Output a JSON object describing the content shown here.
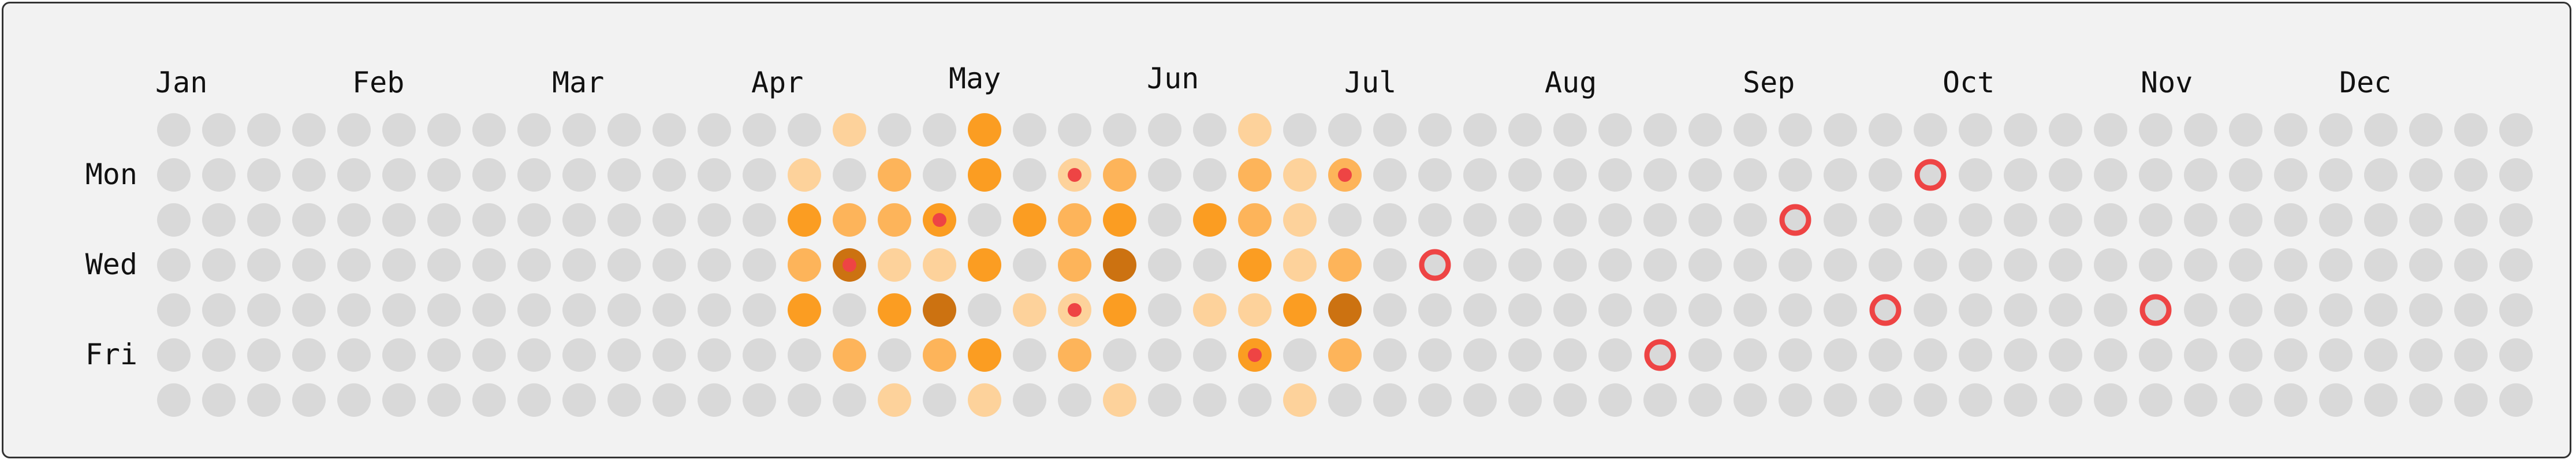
{
  "chart_data": {
    "type": "heatmap",
    "title": "",
    "months": [
      "Jan",
      "Feb",
      "Mar",
      "Apr",
      "May",
      "Jun",
      "Jul",
      "Aug",
      "Sep",
      "Oct",
      "Nov",
      "Dec"
    ],
    "day_labels": [
      "Mon",
      "Wed",
      "Fri"
    ],
    "weeks": 53,
    "days_per_week": 7,
    "level_colors": [
      "#d9d9d9",
      "#fdd29b",
      "#fdb45a",
      "#fb9d22",
      "#cc7211"
    ],
    "marker_color": "#ee4444",
    "active_cells": [
      {
        "week": 15,
        "day": 0,
        "level": 1
      },
      {
        "week": 18,
        "day": 0,
        "level": 3
      },
      {
        "week": 24,
        "day": 0,
        "level": 1
      },
      {
        "week": 14,
        "day": 1,
        "level": 1
      },
      {
        "week": 16,
        "day": 1,
        "level": 2
      },
      {
        "week": 18,
        "day": 1,
        "level": 3
      },
      {
        "week": 20,
        "day": 1,
        "level": 1,
        "dot": true
      },
      {
        "week": 21,
        "day": 1,
        "level": 2
      },
      {
        "week": 24,
        "day": 1,
        "level": 2
      },
      {
        "week": 25,
        "day": 1,
        "level": 1
      },
      {
        "week": 26,
        "day": 1,
        "level": 2,
        "dot": true
      },
      {
        "week": 14,
        "day": 2,
        "level": 3
      },
      {
        "week": 15,
        "day": 2,
        "level": 2
      },
      {
        "week": 16,
        "day": 2,
        "level": 2
      },
      {
        "week": 17,
        "day": 2,
        "level": 3,
        "dot": true
      },
      {
        "week": 19,
        "day": 2,
        "level": 3
      },
      {
        "week": 20,
        "day": 2,
        "level": 2
      },
      {
        "week": 21,
        "day": 2,
        "level": 3
      },
      {
        "week": 23,
        "day": 2,
        "level": 3
      },
      {
        "week": 24,
        "day": 2,
        "level": 2
      },
      {
        "week": 25,
        "day": 2,
        "level": 1
      },
      {
        "week": 14,
        "day": 3,
        "level": 2
      },
      {
        "week": 15,
        "day": 3,
        "level": 4,
        "dot": true
      },
      {
        "week": 16,
        "day": 3,
        "level": 1
      },
      {
        "week": 17,
        "day": 3,
        "level": 1
      },
      {
        "week": 18,
        "day": 3,
        "level": 3
      },
      {
        "week": 20,
        "day": 3,
        "level": 2
      },
      {
        "week": 21,
        "day": 3,
        "level": 4
      },
      {
        "week": 24,
        "day": 3,
        "level": 3
      },
      {
        "week": 25,
        "day": 3,
        "level": 1
      },
      {
        "week": 26,
        "day": 3,
        "level": 2
      },
      {
        "week": 14,
        "day": 4,
        "level": 3
      },
      {
        "week": 16,
        "day": 4,
        "level": 3
      },
      {
        "week": 17,
        "day": 4,
        "level": 4
      },
      {
        "week": 19,
        "day": 4,
        "level": 1
      },
      {
        "week": 20,
        "day": 4,
        "level": 1,
        "dot": true
      },
      {
        "week": 21,
        "day": 4,
        "level": 3
      },
      {
        "week": 23,
        "day": 4,
        "level": 1
      },
      {
        "week": 24,
        "day": 4,
        "level": 1
      },
      {
        "week": 25,
        "day": 4,
        "level": 3
      },
      {
        "week": 26,
        "day": 4,
        "level": 4
      },
      {
        "week": 15,
        "day": 5,
        "level": 2
      },
      {
        "week": 17,
        "day": 5,
        "level": 2
      },
      {
        "week": 18,
        "day": 5,
        "level": 3
      },
      {
        "week": 20,
        "day": 5,
        "level": 2
      },
      {
        "week": 24,
        "day": 5,
        "level": 3,
        "dot": true
      },
      {
        "week": 26,
        "day": 5,
        "level": 2
      },
      {
        "week": 16,
        "day": 6,
        "level": 1
      },
      {
        "week": 18,
        "day": 6,
        "level": 1
      },
      {
        "week": 21,
        "day": 6,
        "level": 1
      },
      {
        "week": 25,
        "day": 6,
        "level": 1
      }
    ],
    "ring_cells": [
      {
        "week": 28,
        "day": 3
      },
      {
        "week": 33,
        "day": 5
      },
      {
        "week": 36,
        "day": 2
      },
      {
        "week": 38,
        "day": 4
      },
      {
        "week": 39,
        "day": 1
      },
      {
        "week": 44,
        "day": 4
      }
    ]
  }
}
